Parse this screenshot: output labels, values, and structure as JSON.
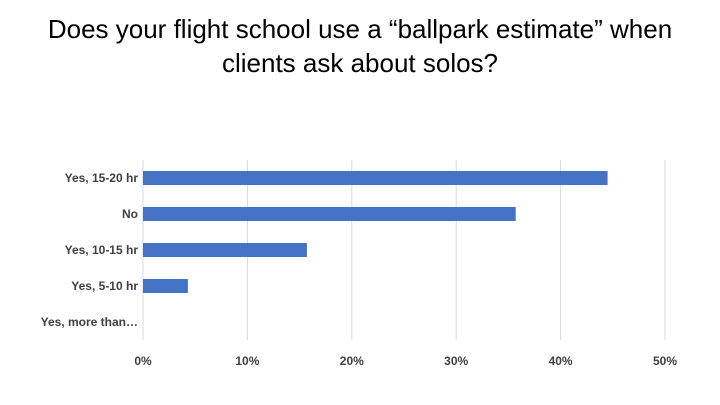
{
  "slide": {
    "title_line1": "Does your flight school use a “ballpark estimate” when",
    "title_line2": "clients ask about solos?"
  },
  "chart_data": {
    "type": "bar",
    "orientation": "horizontal",
    "categories": [
      "Yes, 15-20 hr",
      "No",
      "Yes, 10-15 hr",
      "Yes, 5-10 hr",
      "Yes, more than…"
    ],
    "values": [
      44.5,
      35.7,
      15.7,
      4.3,
      0
    ],
    "xlim": [
      0,
      50
    ],
    "xticks": [
      0,
      10,
      20,
      30,
      40,
      50
    ],
    "xtick_labels": [
      "0%",
      "10%",
      "20%",
      "30%",
      "40%",
      "50%"
    ],
    "xlabel": "",
    "ylabel": "",
    "grid": "vertical",
    "legend": "none",
    "bar_color": "#4472C4",
    "grid_color": "#D9D9D9"
  }
}
